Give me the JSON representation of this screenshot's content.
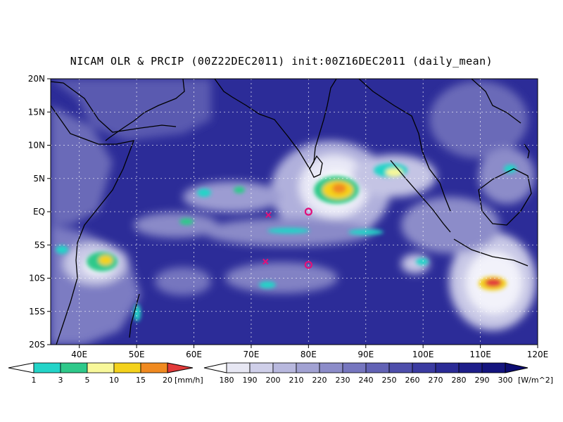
{
  "title": "NICAM OLR & PRCIP (00Z22DEC2011) init:00Z16DEC2011 (daily_mean)",
  "map": {
    "lon_range": [
      35,
      120
    ],
    "lat_range": [
      -20,
      20
    ],
    "lat_ticks": [
      "20N",
      "15N",
      "10N",
      "5N",
      "EQ",
      "5S",
      "10S",
      "15S",
      "20S"
    ],
    "lon_ticks": [
      "40E",
      "50E",
      "60E",
      "70E",
      "80E",
      "90E",
      "100E",
      "110E",
      "120E"
    ]
  },
  "markers": {
    "circles": [
      {
        "lon": 80,
        "lat": 0,
        "color": "#e0107a"
      },
      {
        "lon": 80,
        "lat": -8,
        "color": "#e0107a"
      }
    ],
    "crosses": [
      {
        "lon": 73,
        "lat": -0.5,
        "color": "#e0107a"
      },
      {
        "lon": 72.5,
        "lat": -7.5,
        "color": "#e0107a"
      }
    ]
  },
  "precip_colorbar": {
    "labels": [
      "1",
      "3",
      "5",
      "10",
      "15",
      "20"
    ],
    "unit": "[mm/h]",
    "colors": [
      "#ffffff",
      "#23d4c8",
      "#2ec98a",
      "#f8f89a",
      "#f4d21c",
      "#f08a20",
      "#e23a3a"
    ]
  },
  "olr_colorbar": {
    "labels": [
      "180",
      "190",
      "200",
      "210",
      "220",
      "230",
      "240",
      "250",
      "260",
      "270",
      "280",
      "290",
      "300"
    ],
    "unit": "[W/m^2]",
    "colors": [
      "#ffffff",
      "#e7e7f3",
      "#cfcfe9",
      "#b8b8de",
      "#a2a2d3",
      "#8c8cc9",
      "#7676bf",
      "#6262b5",
      "#4e4eab",
      "#3b3ba1",
      "#2b2b96",
      "#1e1e8a",
      "#14147e",
      "#0c0c72"
    ]
  }
}
